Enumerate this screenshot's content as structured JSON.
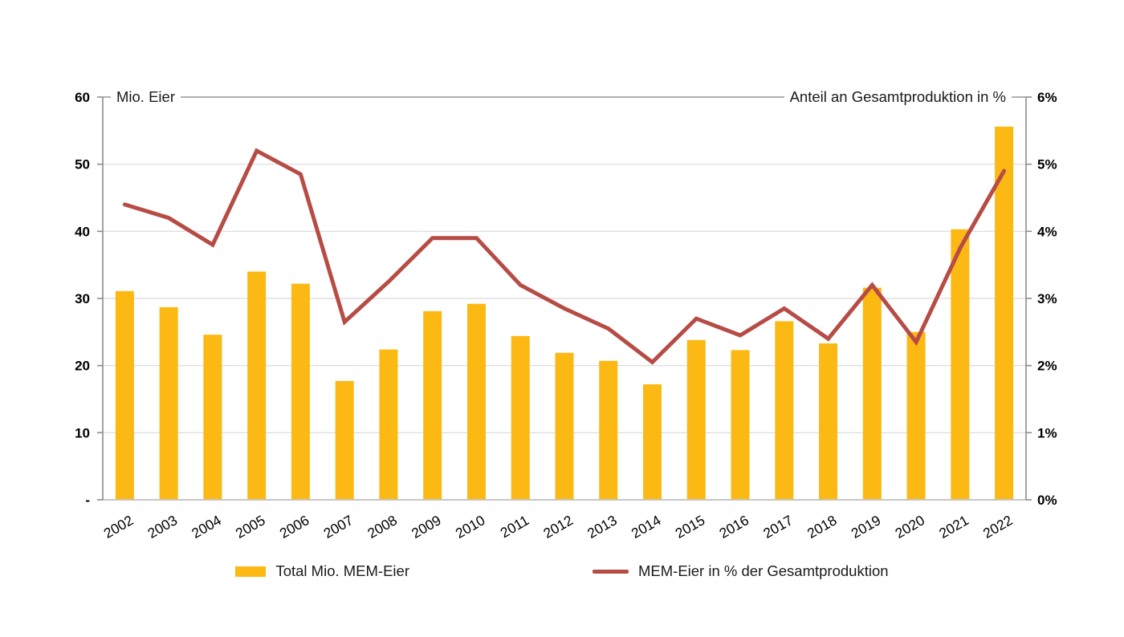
{
  "chart": {
    "left_axis_title": "Mio. Eier",
    "right_axis_title": "Anteil an Gesamtproduktion in %"
  },
  "legend": {
    "bar_label": "Total Mio. MEM-Eier",
    "line_label": "MEM-Eier in % der Gesamtproduktion"
  },
  "chart_data": {
    "type": "combo (bar + line)",
    "categories": [
      "2002",
      "2003",
      "2004",
      "2005",
      "2006",
      "2007",
      "2008",
      "2009",
      "2010",
      "2011",
      "2012",
      "2013",
      "2014",
      "2015",
      "2016",
      "2017",
      "2018",
      "2019",
      "2020",
      "2021",
      "2022"
    ],
    "series": [
      {
        "name": "Total Mio. MEM-Eier",
        "type": "bar",
        "axis": "left",
        "values": [
          31.1,
          28.7,
          24.6,
          34.0,
          32.2,
          17.7,
          22.4,
          28.1,
          29.2,
          24.4,
          21.9,
          20.7,
          17.2,
          23.8,
          22.3,
          26.6,
          23.3,
          31.6,
          25.0,
          40.3,
          55.6
        ]
      },
      {
        "name": "MEM-Eier in % der Gesamtproduktion",
        "type": "line",
        "axis": "right",
        "values": [
          4.4,
          4.2,
          3.8,
          5.2,
          4.85,
          2.65,
          3.25,
          3.9,
          3.9,
          3.2,
          2.85,
          2.55,
          2.05,
          2.7,
          2.45,
          2.85,
          2.4,
          3.2,
          2.35,
          3.75,
          4.9
        ]
      }
    ],
    "left_axis": {
      "title": "Mio. Eier",
      "range": [
        0,
        60
      ],
      "tick_labels": [
        "-",
        "10",
        "20",
        "30",
        "40",
        "50",
        "60"
      ]
    },
    "right_axis": {
      "title": "Anteil an Gesamtproduktion in %",
      "range": [
        0,
        6
      ],
      "tick_labels": [
        "0%",
        "1%",
        "2%",
        "3%",
        "4%",
        "5%",
        "6%"
      ]
    },
    "grid": true,
    "legend_position": "bottom",
    "x_label_rotation_deg": -30,
    "colors": {
      "bar": "#FCB813",
      "line": "#B64C45",
      "grid": "#D9D9D9",
      "axis": "#8C8C8C",
      "top_gridline": "#A6A6A6",
      "category_axis": "#C6C6C6",
      "text": "#000000"
    }
  }
}
